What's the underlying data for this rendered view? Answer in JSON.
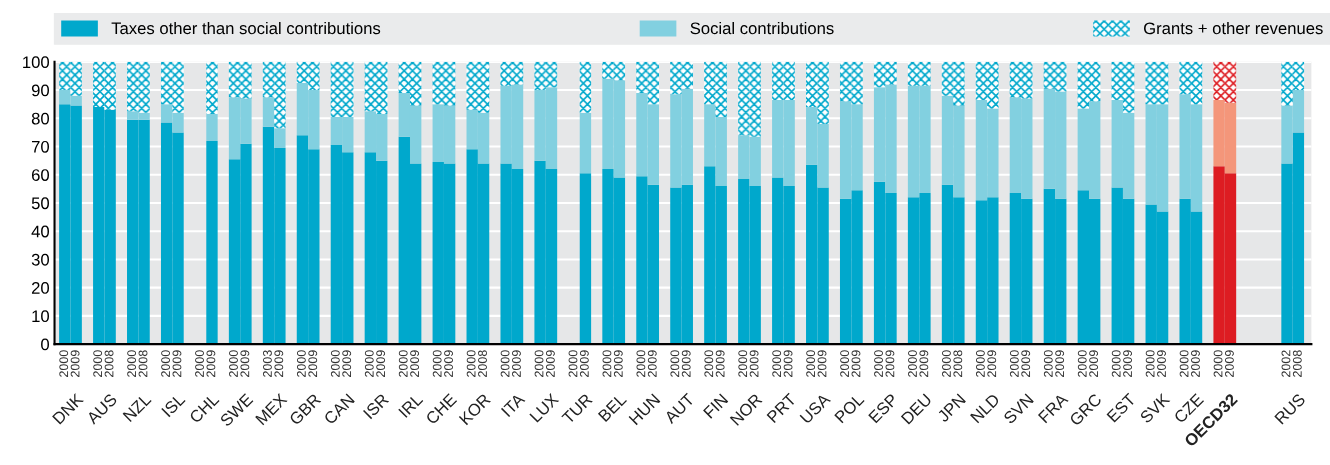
{
  "chart_data": {
    "type": "bar",
    "stacked": true,
    "categories": [
      "2000",
      "2009",
      "2000",
      "2008",
      "2000",
      "2008",
      "2000",
      "2009",
      "2000",
      "2009",
      "2000",
      "2009",
      "2003",
      "2009",
      "2000",
      "2009",
      "2000",
      "2009",
      "2000",
      "2009",
      "2000",
      "2009",
      "2000",
      "2009",
      "2000",
      "2008",
      "2000",
      "2009",
      "2000",
      "2009",
      "2000",
      "2009",
      "2000",
      "2009",
      "2000",
      "2009",
      "2000",
      "2009",
      "2000",
      "2009",
      "2000",
      "2009",
      "2000",
      "2009",
      "2000",
      "2009",
      "2000",
      "2009",
      "2000",
      "2009",
      "2000",
      "2009",
      "2000",
      "2008",
      "2000",
      "2009",
      "2000",
      "2009",
      "2000",
      "2009",
      "2000",
      "2009",
      "2000",
      "2009",
      "2000",
      "2009",
      "2000",
      "2009",
      "2000",
      "2009",
      null,
      null,
      "2002",
      "2008"
    ],
    "annotations": [
      "DNK",
      "AUS",
      "NZL",
      "ISL",
      "CHL",
      "SWE",
      "MEX",
      "GBR",
      "CAN",
      "ISR",
      "IRL",
      "CHE",
      "KOR",
      "ITA",
      "LUX",
      "TUR",
      "BEL",
      "HUN",
      "AUT",
      "FIN",
      "NOR",
      "PRT",
      "USA",
      "POL",
      "ESP",
      "DEU",
      "JPN",
      "NLD",
      "SVN",
      "FRA",
      "GRC",
      "EST",
      "SVK",
      "CZE",
      "OECD32",
      "RUS"
    ],
    "series": [
      {
        "name": "Taxes other than social contributions",
        "values": [
          85,
          84.5,
          84,
          83,
          79.5,
          79.5,
          78.5,
          75,
          null,
          72,
          65.5,
          71,
          77,
          69.5,
          74,
          69,
          70.5,
          68,
          68,
          65,
          73.5,
          64,
          64.5,
          64,
          69,
          64,
          64,
          62,
          65,
          62,
          null,
          60.5,
          62,
          59,
          59.5,
          56.5,
          55.5,
          56.5,
          63,
          56,
          58.5,
          56,
          59,
          56,
          63.5,
          55.5,
          51.5,
          54.5,
          57.5,
          53.5,
          52,
          53.5,
          56.5,
          52,
          51,
          52,
          53.5,
          51.5,
          55,
          51.5,
          54.5,
          51.5,
          55.5,
          51.5,
          49.5,
          47,
          51.5,
          47,
          63,
          60.5,
          null,
          null,
          64,
          75
        ],
        "colors": [
          "#00a8cc",
          "#00a8cc",
          "#00a8cc",
          "#00a8cc",
          "#00a8cc",
          "#00a8cc",
          "#00a8cc",
          "#00a8cc",
          "#00a8cc",
          "#00a8cc",
          "#00a8cc",
          "#00a8cc",
          "#00a8cc",
          "#00a8cc",
          "#00a8cc",
          "#00a8cc",
          "#00a8cc",
          "#00a8cc",
          "#00a8cc",
          "#00a8cc",
          "#00a8cc",
          "#00a8cc",
          "#00a8cc",
          "#00a8cc",
          "#00a8cc",
          "#00a8cc",
          "#00a8cc",
          "#00a8cc",
          "#00a8cc",
          "#00a8cc",
          "#00a8cc",
          "#00a8cc",
          "#00a8cc",
          "#00a8cc",
          "#00a8cc",
          "#00a8cc",
          "#00a8cc",
          "#00a8cc",
          "#00a8cc",
          "#00a8cc",
          "#00a8cc",
          "#00a8cc",
          "#00a8cc",
          "#00a8cc",
          "#00a8cc",
          "#00a8cc",
          "#00a8cc",
          "#00a8cc",
          "#00a8cc",
          "#00a8cc",
          "#00a8cc",
          "#00a8cc",
          "#00a8cc",
          "#00a8cc",
          "#00a8cc",
          "#00a8cc",
          "#00a8cc",
          "#00a8cc",
          "#00a8cc",
          "#00a8cc",
          "#00a8cc",
          "#00a8cc",
          "#00a8cc",
          "#00a8cc",
          "#00a8cc",
          "#00a8cc",
          "#00a8cc",
          "#00a8cc",
          "#dd1c22",
          "#dd1c22",
          "#00a8cc",
          "#00a8cc",
          "#00a8cc",
          "#00a8cc"
        ]
      },
      {
        "name": "Social contributions",
        "values": [
          5,
          3.5,
          0,
          0,
          3,
          2.5,
          6.5,
          7,
          null,
          9.5,
          22,
          16,
          10.5,
          7,
          18.5,
          21,
          10,
          12.5,
          14.5,
          16.5,
          15.5,
          20.5,
          20.5,
          20.5,
          14,
          18,
          27.5,
          30,
          25,
          29,
          null,
          21.5,
          32,
          34.5,
          29.5,
          28.5,
          33,
          34,
          22,
          24.5,
          15.5,
          17.5,
          27.5,
          30.5,
          20.5,
          22.5,
          34.5,
          30.5,
          33.5,
          38.5,
          39.5,
          38,
          31.5,
          32.5,
          35.5,
          31.5,
          34,
          35.5,
          35.5,
          38,
          29,
          34.5,
          31,
          30.5,
          35.5,
          38,
          37,
          38,
          23.5,
          25,
          null,
          null,
          20.5,
          15
        ],
        "colors": [
          "#82d0e0",
          "#82d0e0",
          "#82d0e0",
          "#82d0e0",
          "#82d0e0",
          "#82d0e0",
          "#82d0e0",
          "#82d0e0",
          "#82d0e0",
          "#82d0e0",
          "#82d0e0",
          "#82d0e0",
          "#82d0e0",
          "#82d0e0",
          "#82d0e0",
          "#82d0e0",
          "#82d0e0",
          "#82d0e0",
          "#82d0e0",
          "#82d0e0",
          "#82d0e0",
          "#82d0e0",
          "#82d0e0",
          "#82d0e0",
          "#82d0e0",
          "#82d0e0",
          "#82d0e0",
          "#82d0e0",
          "#82d0e0",
          "#82d0e0",
          "#82d0e0",
          "#82d0e0",
          "#82d0e0",
          "#82d0e0",
          "#82d0e0",
          "#82d0e0",
          "#82d0e0",
          "#82d0e0",
          "#82d0e0",
          "#82d0e0",
          "#82d0e0",
          "#82d0e0",
          "#82d0e0",
          "#82d0e0",
          "#82d0e0",
          "#82d0e0",
          "#82d0e0",
          "#82d0e0",
          "#82d0e0",
          "#82d0e0",
          "#82d0e0",
          "#82d0e0",
          "#82d0e0",
          "#82d0e0",
          "#82d0e0",
          "#82d0e0",
          "#82d0e0",
          "#82d0e0",
          "#82d0e0",
          "#82d0e0",
          "#82d0e0",
          "#82d0e0",
          "#82d0e0",
          "#82d0e0",
          "#82d0e0",
          "#82d0e0",
          "#82d0e0",
          "#82d0e0",
          "#f4967a",
          "#f4967a",
          "#82d0e0",
          "#82d0e0",
          "#82d0e0",
          "#82d0e0"
        ]
      },
      {
        "name": "Grants + other revenues",
        "values": [
          10,
          12,
          16,
          17,
          17.5,
          18,
          15,
          18,
          null,
          18.5,
          12.5,
          13,
          12.5,
          23.5,
          7.5,
          10,
          19.5,
          19.5,
          17.5,
          18.5,
          11,
          15.5,
          15,
          15.5,
          17,
          18,
          8.5,
          8,
          10,
          9,
          null,
          18,
          6,
          6.5,
          11,
          15,
          11.5,
          9.5,
          15,
          19.5,
          26,
          26.5,
          13.5,
          13.5,
          16,
          22,
          14,
          15,
          9,
          8,
          8.5,
          8.5,
          12,
          15.5,
          13.5,
          16.5,
          12.5,
          13,
          9.5,
          10.5,
          16.5,
          14,
          13.5,
          18,
          15,
          15,
          11.5,
          15,
          13.5,
          14.5,
          null,
          null,
          15.5,
          10
        ],
        "colors": [
          "#00a8cc",
          "#00a8cc",
          "#00a8cc",
          "#00a8cc",
          "#00a8cc",
          "#00a8cc",
          "#00a8cc",
          "#00a8cc",
          "#00a8cc",
          "#00a8cc",
          "#00a8cc",
          "#00a8cc",
          "#00a8cc",
          "#00a8cc",
          "#00a8cc",
          "#00a8cc",
          "#00a8cc",
          "#00a8cc",
          "#00a8cc",
          "#00a8cc",
          "#00a8cc",
          "#00a8cc",
          "#00a8cc",
          "#00a8cc",
          "#00a8cc",
          "#00a8cc",
          "#00a8cc",
          "#00a8cc",
          "#00a8cc",
          "#00a8cc",
          "#00a8cc",
          "#00a8cc",
          "#00a8cc",
          "#00a8cc",
          "#00a8cc",
          "#00a8cc",
          "#00a8cc",
          "#00a8cc",
          "#00a8cc",
          "#00a8cc",
          "#00a8cc",
          "#00a8cc",
          "#00a8cc",
          "#00a8cc",
          "#00a8cc",
          "#00a8cc",
          "#00a8cc",
          "#00a8cc",
          "#00a8cc",
          "#00a8cc",
          "#00a8cc",
          "#00a8cc",
          "#00a8cc",
          "#00a8cc",
          "#00a8cc",
          "#00a8cc",
          "#00a8cc",
          "#00a8cc",
          "#00a8cc",
          "#00a8cc",
          "#00a8cc",
          "#00a8cc",
          "#00a8cc",
          "#00a8cc",
          "#00a8cc",
          "#00a8cc",
          "#00a8cc",
          "#00a8cc",
          "#dd1c22",
          "#dd1c22",
          "#00a8cc",
          "#00a8cc",
          "#00a8cc",
          "#00a8cc"
        ]
      }
    ],
    "ylim": [
      0,
      100
    ],
    "yticks": [
      0,
      10,
      20,
      30,
      40,
      50,
      60,
      70,
      80,
      90,
      100
    ],
    "grid": "y",
    "legend": "top"
  }
}
